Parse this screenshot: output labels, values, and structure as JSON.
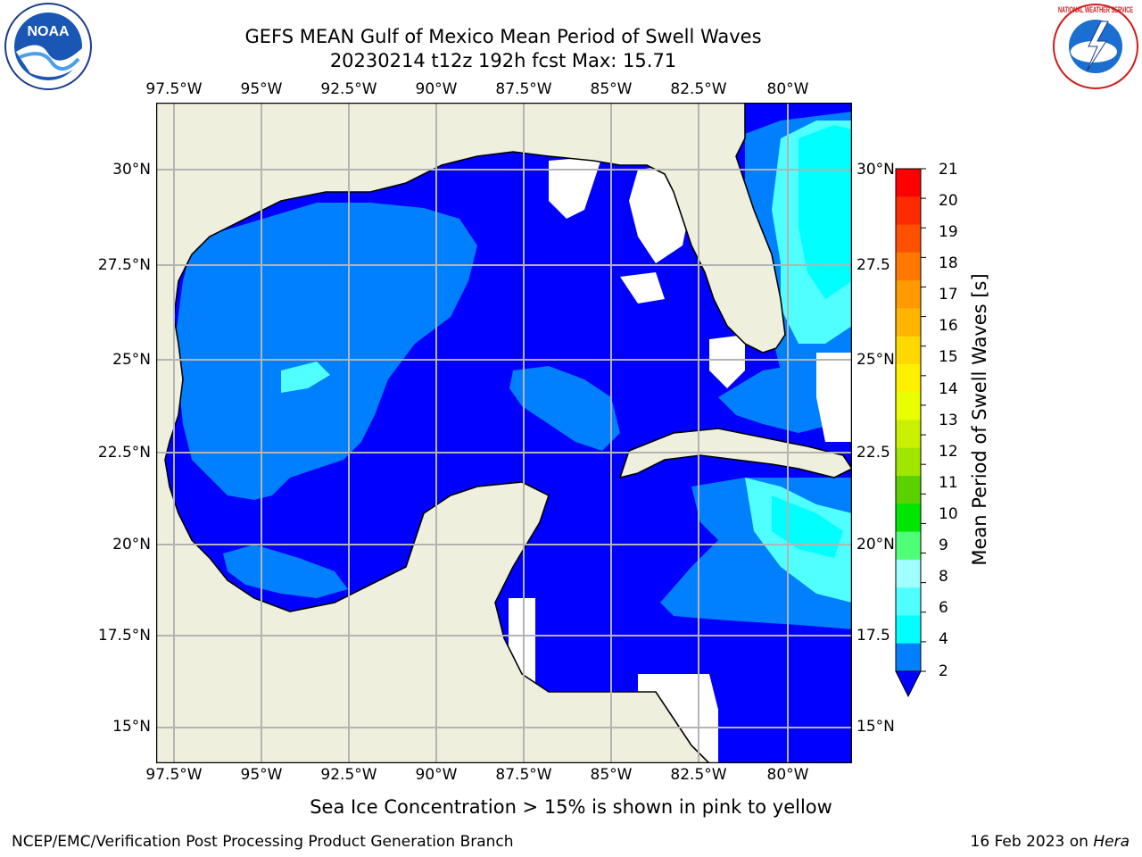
{
  "title_line1": "GEFS MEAN Gulf of Mexico Mean Period of Swell Waves",
  "title_line2": "20230214 t12z 192h fcst   Max: 15.71",
  "lon_labels": [
    "97.5°W",
    "95°W",
    "92.5°W",
    "90°W",
    "87.5°W",
    "85°W",
    "82.5°W",
    "80°W"
  ],
  "lat_labels": [
    "30°N",
    "27.5°N",
    "25°N",
    "22.5°N",
    "20°N",
    "17.5°N",
    "15°N"
  ],
  "lat_labels_right": [
    "30°N",
    "27.5",
    "25°N",
    "22.5",
    "20°N",
    "17.5",
    "15°N"
  ],
  "colorbar": {
    "label": "Mean Period of Swell Waves [s]",
    "ticks": [
      "21",
      "20",
      "19",
      "18",
      "17",
      "16",
      "15",
      "14",
      "13",
      "12",
      "11",
      "10",
      "9",
      "8",
      "6",
      "4",
      "2"
    ],
    "colors": [
      "#ff0000",
      "#ff2a00",
      "#ff5000",
      "#ff7800",
      "#ff9a00",
      "#ffb400",
      "#ffd800",
      "#fff000",
      "#e8ff00",
      "#c8f000",
      "#a0e600",
      "#5ad200",
      "#00e600",
      "#50ff78",
      "#a0ffff",
      "#50ffff",
      "#00ffff",
      "#0080ff"
    ],
    "underflow_color": "#0000ff"
  },
  "colors": {
    "land": "#efefdd",
    "dark_blue": "#0000ff",
    "mid_blue": "#0080ff",
    "cyan": "#00ffff",
    "light_cyan": "#50ffff",
    "green": "#00e600"
  },
  "logos": {
    "left": "NOAA",
    "right": "NATIONAL WEATHER SERVICE"
  },
  "caption": "Sea Ice Concentration > 15% is shown in pink to yellow",
  "footer_left": "NCEP/EMC/Verification Post Processing Product Generation Branch",
  "footer_right_date": "16 Feb 2023 on ",
  "footer_right_host": "Hera"
}
